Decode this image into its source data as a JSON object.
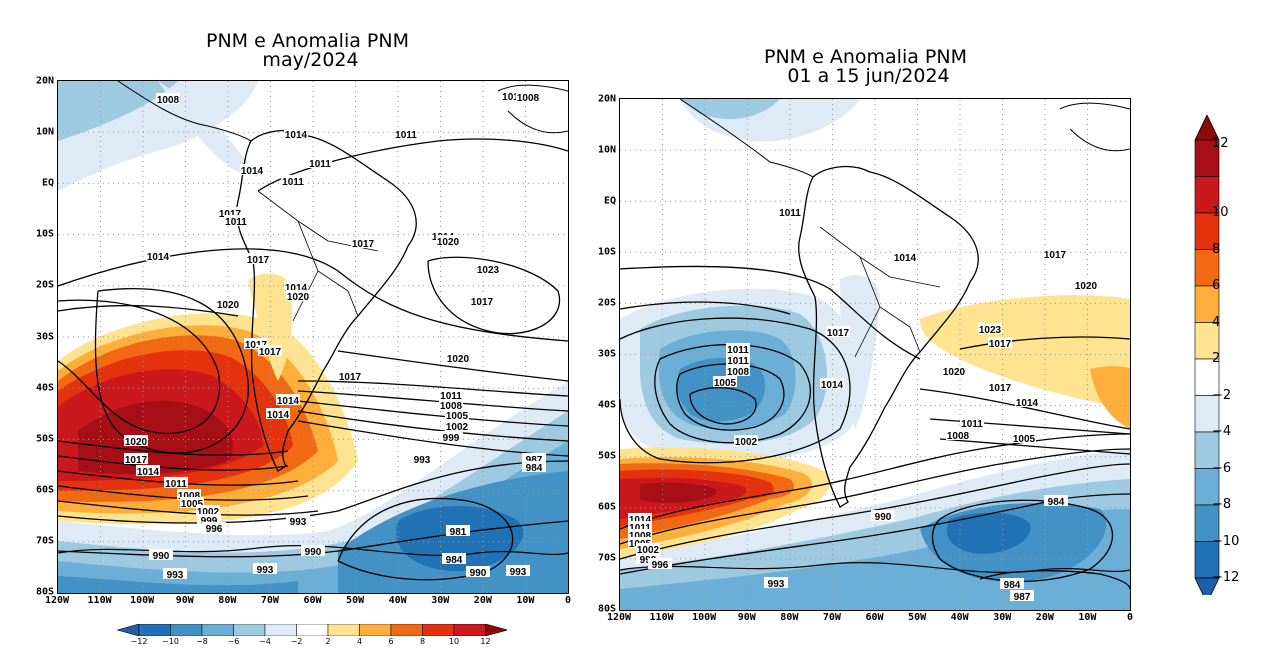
{
  "panels": [
    {
      "title": "PNM e Anomalia PNM\n may/2024",
      "y_ticks": [
        "20N",
        "10N",
        "EQ",
        "10S",
        "20S",
        "30S",
        "40S",
        "50S",
        "60S",
        "70S",
        "80S"
      ],
      "x_ticks": [
        "120W",
        "110W",
        "100W",
        "90W",
        "80W",
        "70W",
        "60W",
        "50W",
        "40W",
        "30W",
        "20W",
        "10W",
        "0"
      ],
      "contour_labels": [
        "1008",
        "1011",
        "1014",
        "1011",
        "1011",
        "1014",
        "1011",
        "1017",
        "1011",
        "1014",
        "1014",
        "1017",
        "1017",
        "1020",
        "1014",
        "1020",
        "1020",
        "1023",
        "1017",
        "1017",
        "1017",
        "1020",
        "1017",
        "1014",
        "1014",
        "1011",
        "1008",
        "1005",
        "1002",
        "999",
        "1020",
        "1017",
        "1014",
        "1011",
        "1008",
        "1005",
        "1002",
        "999",
        "996",
        "993",
        "993",
        "987",
        "984",
        "981",
        "990",
        "993",
        "993",
        "990",
        "984",
        "990",
        "993",
        "1008"
      ]
    },
    {
      "title": "PNM e Anomalia PNM\n 01 a 15 jun/2024",
      "y_ticks": [
        "20N",
        "10N",
        "EQ",
        "10S",
        "20S",
        "30S",
        "40S",
        "50S",
        "60S",
        "70S",
        "80S"
      ],
      "x_ticks": [
        "120W",
        "110W",
        "100W",
        "90W",
        "80W",
        "70W",
        "60W",
        "50W",
        "40W",
        "30W",
        "20W",
        "10W",
        "0"
      ],
      "contour_labels": [
        "1011",
        "1014",
        "1017",
        "1011",
        "1011",
        "1008",
        "1005",
        "1014",
        "1017",
        "1017",
        "1020",
        "1023",
        "1020",
        "1017",
        "1014",
        "1011",
        "1008",
        "1005",
        "1002",
        "1014",
        "1011",
        "1008",
        "1005",
        "1002",
        "999",
        "996",
        "990",
        "993",
        "984",
        "984",
        "987"
      ]
    }
  ],
  "colorbar_vertical": {
    "labels": [
      "12",
      "10",
      "8",
      "6",
      "4",
      "2",
      "−2",
      "−4",
      "−6",
      "−8",
      "−10",
      "−12"
    ],
    "colors": [
      "#a50f15",
      "#cb181d",
      "#e3320d",
      "#f16913",
      "#fdae3b",
      "#fee391",
      "#ffffff",
      "#deebf7",
      "#9ecae1",
      "#6baed6",
      "#4292c6",
      "#2171b5"
    ]
  },
  "colorbar_horizontal": {
    "labels": [
      "−12",
      "−10",
      "−8",
      "−6",
      "−4",
      "−2",
      "2",
      "4",
      "6",
      "8",
      "10",
      "12"
    ]
  }
}
